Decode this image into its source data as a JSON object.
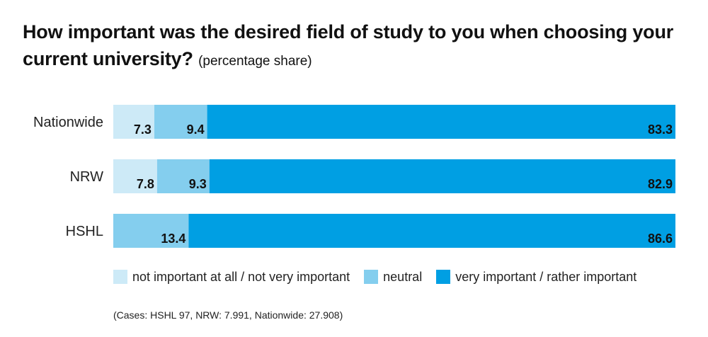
{
  "title": {
    "main": "How important was the desired field of study to you when choosing your current university?",
    "sub": "(percentage share)"
  },
  "chart_data": {
    "type": "bar",
    "orientation": "horizontal",
    "stacked": true,
    "categories": [
      "Nationwide",
      "NRW",
      "HSHL"
    ],
    "series": [
      {
        "name": "not important at all / not very important",
        "color": "#cdeaf7",
        "values": [
          7.3,
          7.8,
          0
        ]
      },
      {
        "name": "neutral",
        "color": "#84ceee",
        "values": [
          9.4,
          9.3,
          13.4
        ]
      },
      {
        "name": "very important / rather important",
        "color": "#009fe3",
        "values": [
          83.3,
          82.9,
          86.6
        ]
      }
    ],
    "xlim": [
      0,
      100
    ],
    "grid": false,
    "legend_position": "bottom"
  },
  "footnote": "(Cases: HSHL 97, NRW: 7.991, Nationwide: 27.908)"
}
